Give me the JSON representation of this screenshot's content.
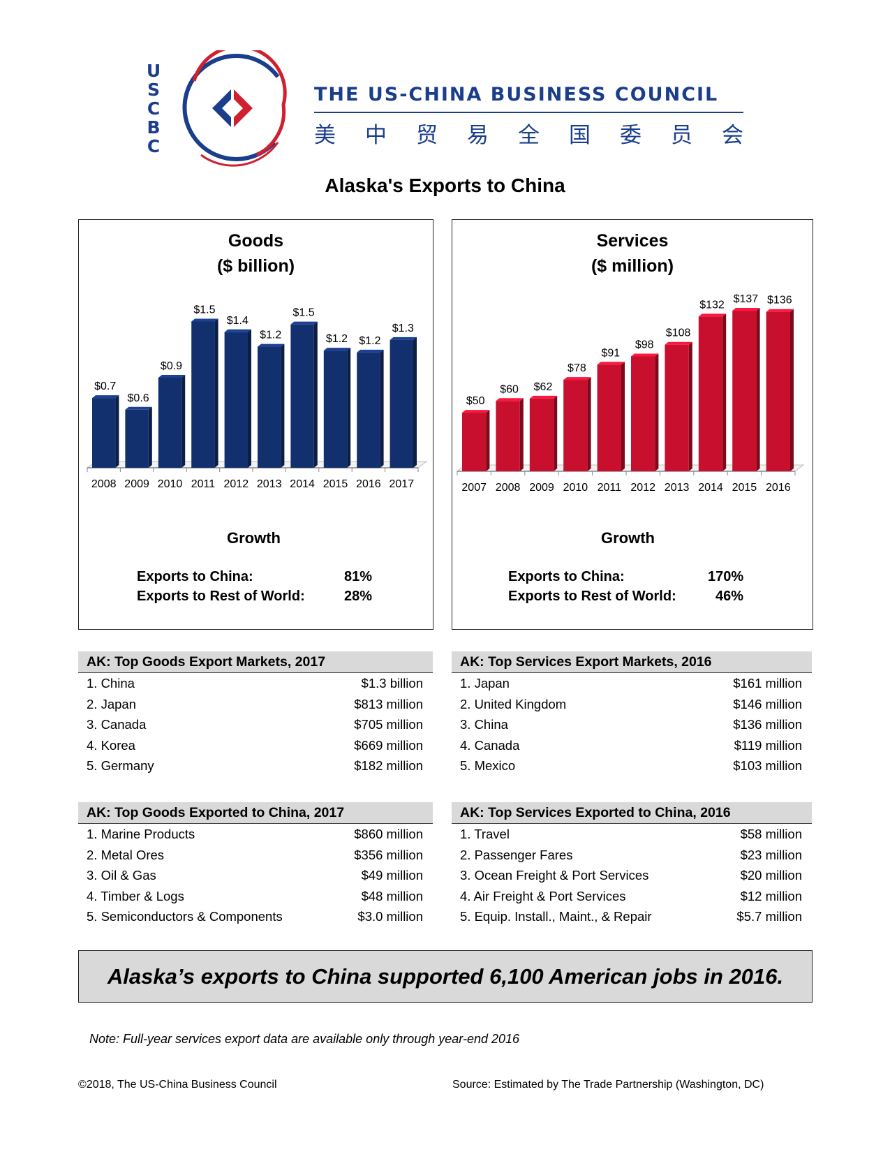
{
  "header": {
    "logo_letters": [
      "U",
      "S",
      "C",
      "B",
      "C"
    ],
    "org_name": "THE US-CHINA BUSINESS COUNCIL",
    "org_name_cn": [
      "美",
      "中",
      "贸",
      "易",
      "全",
      "国",
      "委",
      "员",
      "会"
    ],
    "colors": {
      "brand_blue": "#1a3e8c",
      "brand_red": "#d0202f"
    }
  },
  "title": "Alaska's Exports to China",
  "chart_data": [
    {
      "type": "bar",
      "title": "Goods",
      "subtitle": "($ billion)",
      "categories": [
        "2008",
        "2009",
        "2010",
        "2011",
        "2012",
        "2013",
        "2014",
        "2015",
        "2016",
        "2017"
      ],
      "values": [
        0.7,
        0.6,
        0.9,
        1.5,
        1.4,
        1.2,
        1.5,
        1.2,
        1.2,
        1.3
      ],
      "data_labels": [
        "$0.7",
        "$0.6",
        "$0.9",
        "$1.5",
        "$1.4",
        "$1.2",
        "$1.5",
        "$1.2",
        "$1.2",
        "$1.3"
      ],
      "plot_values": [
        0.72,
        0.6,
        0.93,
        1.51,
        1.4,
        1.25,
        1.48,
        1.21,
        1.19,
        1.32
      ],
      "ylim": [
        0,
        1.6
      ],
      "grid": false,
      "color": "#13306e"
    },
    {
      "type": "bar",
      "title": "Services",
      "subtitle": "($ million)",
      "categories": [
        "2007",
        "2008",
        "2009",
        "2010",
        "2011",
        "2012",
        "2013",
        "2014",
        "2015",
        "2016"
      ],
      "values": [
        50,
        60,
        62,
        78,
        91,
        98,
        108,
        132,
        137,
        136
      ],
      "data_labels": [
        "$50",
        "$60",
        "$62",
        "$78",
        "$91",
        "$98",
        "$108",
        "$132",
        "$137",
        "$136"
      ],
      "ylim": [
        0,
        140
      ],
      "grid": false,
      "color": "#c8102e"
    }
  ],
  "growth": {
    "goods": {
      "title": "Growth",
      "china_label": "Exports to China:",
      "china_value": "81%",
      "world_label": "Exports to Rest of World:",
      "world_value": "28%"
    },
    "services": {
      "title": "Growth",
      "china_label": "Exports to China:",
      "china_value": "170%",
      "world_label": "Exports to Rest of World:",
      "world_value": "46%"
    }
  },
  "tables": {
    "goods_markets": {
      "title": "AK: Top Goods Export Markets, 2017",
      "rows": [
        {
          "name": "1. China",
          "value": "$1.3 billion"
        },
        {
          "name": "2. Japan",
          "value": "$813 million"
        },
        {
          "name": "3. Canada",
          "value": "$705 million"
        },
        {
          "name": "4. Korea",
          "value": "$669 million"
        },
        {
          "name": "5. Germany",
          "value": "$182 million"
        }
      ]
    },
    "services_markets": {
      "title": "AK: Top Services Export Markets, 2016",
      "rows": [
        {
          "name": "1. Japan",
          "value": "$161 million"
        },
        {
          "name": "2. United Kingdom",
          "value": "$146 million"
        },
        {
          "name": "3. China",
          "value": "$136 million"
        },
        {
          "name": "4. Canada",
          "value": "$119 million"
        },
        {
          "name": "5. Mexico",
          "value": "$103 million"
        }
      ]
    },
    "goods_to_china": {
      "title": "AK: Top Goods Exported to China, 2017",
      "rows": [
        {
          "name": "1. Marine Products",
          "value": "$860 million"
        },
        {
          "name": "2. Metal Ores",
          "value": "$356 million"
        },
        {
          "name": "3. Oil & Gas",
          "value": "$49 million"
        },
        {
          "name": "4. Timber & Logs",
          "value": "$48 million"
        },
        {
          "name": "5. Semiconductors & Components",
          "value": "$3.0 million"
        }
      ]
    },
    "services_to_china": {
      "title": "AK: Top Services Exported to China, 2016",
      "rows": [
        {
          "name": "1. Travel",
          "value": "$58 million"
        },
        {
          "name": "2. Passenger Fares",
          "value": "$23 million"
        },
        {
          "name": "3. Ocean Freight & Port Services",
          "value": "$20 million"
        },
        {
          "name": "4. Air Freight & Port Services",
          "value": "$12 million"
        },
        {
          "name": "5. Equip. Install., Maint., & Repair",
          "value": "$5.7 million"
        }
      ]
    }
  },
  "banner": "Alaska’s exports to China supported 6,100 American jobs in 2016.",
  "note": "Note: Full-year services export data are available only through year-end 2016",
  "footer": {
    "copyright": "©2018, The US-China Business Council",
    "source": "Source: Estimated by The Trade Partnership (Washington, DC)"
  }
}
